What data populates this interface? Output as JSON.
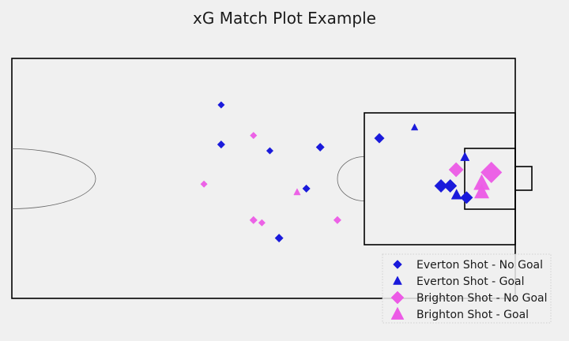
{
  "chart_data": {
    "type": "scatter",
    "title": "xG Match Plot Example",
    "xlabel": "",
    "ylabel": "",
    "xlim": [
      0,
      120
    ],
    "ylim": [
      0,
      80
    ],
    "grid": false,
    "legend_position": "bottom-right",
    "series": [
      {
        "name": "Everton Shot - No Goal",
        "marker": "diamond",
        "color": "#1a1adb",
        "points": [
          {
            "x": 49.9,
            "y": 64.5,
            "xg": 0.02
          },
          {
            "x": 49.9,
            "y": 51.3,
            "xg": 0.03
          },
          {
            "x": 61.5,
            "y": 49.2,
            "xg": 0.02
          },
          {
            "x": 73.5,
            "y": 50.4,
            "xg": 0.04
          },
          {
            "x": 70.2,
            "y": 36.6,
            "xg": 0.03
          },
          {
            "x": 63.7,
            "y": 20.1,
            "xg": 0.04
          },
          {
            "x": 87.6,
            "y": 53.4,
            "xg": 0.07
          },
          {
            "x": 102.3,
            "y": 37.5,
            "xg": 0.15
          },
          {
            "x": 104.5,
            "y": 37.5,
            "xg": 0.15
          },
          {
            "x": 108.4,
            "y": 33.6,
            "xg": 0.13
          }
        ]
      },
      {
        "name": "Everton Shot - Goal",
        "marker": "triangle",
        "color": "#1a1adb",
        "points": [
          {
            "x": 96.0,
            "y": 57.0,
            "xg": 0.02
          },
          {
            "x": 108.0,
            "y": 47.1,
            "xg": 0.05
          },
          {
            "x": 106.0,
            "y": 34.5,
            "xg": 0.08
          }
        ]
      },
      {
        "name": "Brighton Shot - No Goal",
        "marker": "diamond",
        "color": "#ec5be6",
        "points": [
          {
            "x": 57.6,
            "y": 54.3,
            "xg": 0.02
          },
          {
            "x": 45.8,
            "y": 38.1,
            "xg": 0.02
          },
          {
            "x": 57.6,
            "y": 26.1,
            "xg": 0.03
          },
          {
            "x": 59.6,
            "y": 25.2,
            "xg": 0.02
          },
          {
            "x": 77.6,
            "y": 26.1,
            "xg": 0.03
          },
          {
            "x": 105.9,
            "y": 42.9,
            "xg": 0.2
          },
          {
            "x": 114.3,
            "y": 42.0,
            "xg": 0.5
          }
        ]
      },
      {
        "name": "Brighton Shot - Goal",
        "marker": "triangle",
        "color": "#ec5be6",
        "points": [
          {
            "x": 68.0,
            "y": 35.4,
            "xg": 0.02
          },
          {
            "x": 112.0,
            "y": 38.4,
            "xg": 0.25
          },
          {
            "x": 112.0,
            "y": 35.4,
            "xg": 0.2
          }
        ]
      }
    ]
  }
}
